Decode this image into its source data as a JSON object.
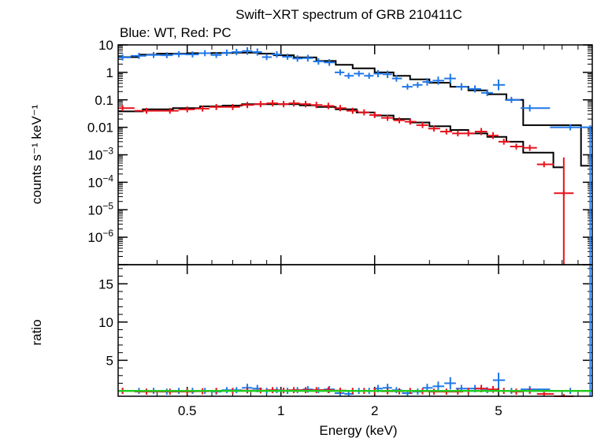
{
  "chart_data": {
    "type": "scatter",
    "title": "Swift−XRT spectrum of GRB 210411C",
    "subtitle": "Blue: WT, Red: PC",
    "xlabel": "Energy (keV)",
    "x_scale": "log",
    "xlim": [
      0.3,
      10
    ],
    "x_ticks": [
      {
        "value": 0.5,
        "label": "0.5"
      },
      {
        "value": 1,
        "label": "1"
      },
      {
        "value": 2,
        "label": "2"
      },
      {
        "value": 5,
        "label": "5"
      }
    ],
    "top_panel": {
      "ylabel": "counts s⁻¹ keV⁻¹",
      "y_scale": "log",
      "ylim": [
        1e-07,
        10
      ],
      "y_ticks": [
        {
          "value": 10,
          "label": "10"
        },
        {
          "value": 1,
          "label": "1"
        },
        {
          "value": 0.1,
          "label": "0.1"
        },
        {
          "value": 0.01,
          "label": "0.01"
        },
        {
          "value": 0.001,
          "base": "10",
          "exp": "−3"
        },
        {
          "value": 0.0001,
          "base": "10",
          "exp": "−4"
        },
        {
          "value": 1e-05,
          "base": "10",
          "exp": "−5"
        },
        {
          "value": 1e-06,
          "base": "10",
          "exp": "−6"
        }
      ]
    },
    "bottom_panel": {
      "ylabel": "ratio",
      "ylim": [
        0.3,
        17.5
      ],
      "y_ticks": [
        {
          "value": 5,
          "label": "5"
        },
        {
          "value": 10,
          "label": "10"
        },
        {
          "value": 15,
          "label": "15"
        }
      ],
      "reference_line": 1.0
    },
    "series": [
      {
        "color": "#1f77e8",
        "points": [
          {
            "x": 0.31,
            "y": 3.5,
            "r": 1.0
          },
          {
            "x": 0.35,
            "y": 4.0,
            "r": 1.0
          },
          {
            "x": 0.39,
            "y": 4.3,
            "r": 1.0
          },
          {
            "x": 0.43,
            "y": 4.2,
            "r": 0.9
          },
          {
            "x": 0.47,
            "y": 4.6,
            "r": 1.0
          },
          {
            "x": 0.52,
            "y": 4.5,
            "r": 1.0
          },
          {
            "x": 0.57,
            "y": 5.0,
            "r": 1.0
          },
          {
            "x": 0.62,
            "y": 4.3,
            "r": 0.9
          },
          {
            "x": 0.67,
            "y": 5.2,
            "r": 1.1
          },
          {
            "x": 0.72,
            "y": 5.5,
            "r": 1.1
          },
          {
            "x": 0.78,
            "y": 6.0,
            "r": 1.4
          },
          {
            "x": 0.84,
            "y": 5.5,
            "r": 1.3
          },
          {
            "x": 0.9,
            "y": 3.6,
            "r": 1.0
          },
          {
            "x": 0.97,
            "y": 4.5,
            "r": 1.1
          },
          {
            "x": 1.05,
            "y": 3.7,
            "r": 1.0
          },
          {
            "x": 1.13,
            "y": 3.2,
            "r": 1.1
          },
          {
            "x": 1.22,
            "y": 3.3,
            "r": 1.2
          },
          {
            "x": 1.32,
            "y": 2.5,
            "r": 1.1
          },
          {
            "x": 1.43,
            "y": 2.3,
            "r": 1.2
          },
          {
            "x": 1.55,
            "y": 1.0,
            "r": 0.7
          },
          {
            "x": 1.65,
            "y": 0.75,
            "r": 0.6
          },
          {
            "x": 1.78,
            "y": 0.9,
            "r": 1.0
          },
          {
            "x": 1.92,
            "y": 0.75,
            "r": 1.0
          },
          {
            "x": 2.05,
            "y": 0.9,
            "r": 1.3
          },
          {
            "x": 2.2,
            "y": 0.85,
            "r": 1.4
          },
          {
            "x": 2.35,
            "y": 0.6,
            "r": 1.1
          },
          {
            "x": 2.55,
            "y": 0.3,
            "r": 0.7
          },
          {
            "x": 2.75,
            "y": 0.35,
            "r": 0.9
          },
          {
            "x": 2.95,
            "y": 0.45,
            "r": 1.4
          },
          {
            "x": 3.2,
            "y": 0.5,
            "r": 1.6
          },
          {
            "x": 3.5,
            "y": 0.6,
            "r": 2.0
          },
          {
            "x": 3.8,
            "y": 0.3,
            "r": 1.3
          },
          {
            "x": 4.2,
            "y": 0.25,
            "r": 1.3
          },
          {
            "x": 4.6,
            "y": 0.18,
            "r": 1.1
          },
          {
            "x": 5.0,
            "y": 0.35,
            "r": 2.4
          },
          {
            "x": 5.5,
            "y": 0.1,
            "r": 1.0
          },
          {
            "x": 6.3,
            "y": 0.05,
            "r": 1.2
          },
          {
            "x": 8.5,
            "y": 0.01,
            "r": 1.0
          }
        ],
        "model": [
          [
            0.3,
            3.6
          ],
          [
            0.35,
            3.6
          ],
          [
            0.35,
            4.4
          ],
          [
            0.4,
            4.4
          ],
          [
            0.4,
            4.8
          ],
          [
            0.5,
            4.8
          ],
          [
            0.5,
            5.0
          ],
          [
            0.6,
            5.0
          ],
          [
            0.6,
            5.1
          ],
          [
            0.7,
            5.1
          ],
          [
            0.7,
            5.2
          ],
          [
            0.85,
            5.2
          ],
          [
            0.85,
            4.8
          ],
          [
            0.95,
            4.8
          ],
          [
            0.95,
            4.2
          ],
          [
            1.1,
            4.2
          ],
          [
            1.1,
            3.5
          ],
          [
            1.3,
            3.5
          ],
          [
            1.3,
            2.6
          ],
          [
            1.5,
            2.6
          ],
          [
            1.5,
            1.9
          ],
          [
            1.7,
            1.9
          ],
          [
            1.7,
            1.4
          ],
          [
            2.0,
            1.4
          ],
          [
            2.0,
            1.0
          ],
          [
            2.3,
            1.0
          ],
          [
            2.3,
            0.75
          ],
          [
            2.6,
            0.75
          ],
          [
            2.6,
            0.56
          ],
          [
            3.0,
            0.56
          ],
          [
            3.0,
            0.42
          ],
          [
            3.5,
            0.42
          ],
          [
            3.5,
            0.3
          ],
          [
            4.0,
            0.3
          ],
          [
            4.0,
            0.22
          ],
          [
            4.6,
            0.22
          ],
          [
            4.6,
            0.16
          ],
          [
            5.3,
            0.16
          ],
          [
            5.3,
            0.1
          ],
          [
            6.0,
            0.1
          ],
          [
            6.0,
            0.012
          ],
          [
            9.2,
            0.012
          ],
          [
            9.2,
            0.0004
          ],
          [
            10,
            0.0004
          ]
        ]
      },
      {
        "color": "#e8111a",
        "points": [
          {
            "x": 0.31,
            "y": 0.05,
            "r": 1.0
          },
          {
            "x": 0.37,
            "y": 0.04,
            "r": 0.9
          },
          {
            "x": 0.44,
            "y": 0.04,
            "r": 0.9
          },
          {
            "x": 0.5,
            "y": 0.045,
            "r": 0.9
          },
          {
            "x": 0.56,
            "y": 0.048,
            "r": 0.95
          },
          {
            "x": 0.62,
            "y": 0.055,
            "r": 1.0
          },
          {
            "x": 0.7,
            "y": 0.055,
            "r": 1.0
          },
          {
            "x": 0.78,
            "y": 0.065,
            "r": 1.05
          },
          {
            "x": 0.86,
            "y": 0.07,
            "r": 1.05
          },
          {
            "x": 0.94,
            "y": 0.075,
            "r": 1.1
          },
          {
            "x": 1.02,
            "y": 0.07,
            "r": 1.05
          },
          {
            "x": 1.1,
            "y": 0.075,
            "r": 1.1
          },
          {
            "x": 1.2,
            "y": 0.07,
            "r": 1.1
          },
          {
            "x": 1.3,
            "y": 0.065,
            "r": 1.1
          },
          {
            "x": 1.42,
            "y": 0.06,
            "r": 1.1
          },
          {
            "x": 1.55,
            "y": 0.05,
            "r": 1.05
          },
          {
            "x": 1.7,
            "y": 0.04,
            "r": 1.0
          },
          {
            "x": 1.85,
            "y": 0.035,
            "r": 1.0
          },
          {
            "x": 2.0,
            "y": 0.028,
            "r": 1.0
          },
          {
            "x": 2.2,
            "y": 0.022,
            "r": 0.95
          },
          {
            "x": 2.4,
            "y": 0.018,
            "r": 0.95
          },
          {
            "x": 2.6,
            "y": 0.016,
            "r": 1.0
          },
          {
            "x": 2.85,
            "y": 0.012,
            "r": 0.95
          },
          {
            "x": 3.1,
            "y": 0.009,
            "r": 0.9
          },
          {
            "x": 3.4,
            "y": 0.007,
            "r": 0.9
          },
          {
            "x": 3.7,
            "y": 0.006,
            "r": 0.9
          },
          {
            "x": 4.0,
            "y": 0.006,
            "r": 1.0
          },
          {
            "x": 4.4,
            "y": 0.007,
            "r": 1.3
          },
          {
            "x": 4.8,
            "y": 0.005,
            "r": 1.2
          },
          {
            "x": 5.2,
            "y": 0.003,
            "r": 1.0
          },
          {
            "x": 5.7,
            "y": 0.002,
            "r": 0.9
          },
          {
            "x": 6.3,
            "y": 0.0018,
            "r": 1.0
          },
          {
            "x": 7.0,
            "y": 0.00045,
            "r": 0.6
          },
          {
            "x": 8.1,
            "y": 4e-05,
            "r": 0.2
          }
        ],
        "model": [
          [
            0.3,
            0.038
          ],
          [
            0.36,
            0.038
          ],
          [
            0.36,
            0.045
          ],
          [
            0.45,
            0.045
          ],
          [
            0.45,
            0.05
          ],
          [
            0.55,
            0.05
          ],
          [
            0.55,
            0.058
          ],
          [
            0.65,
            0.058
          ],
          [
            0.65,
            0.062
          ],
          [
            0.75,
            0.062
          ],
          [
            0.75,
            0.07
          ],
          [
            0.95,
            0.07
          ],
          [
            0.95,
            0.07
          ],
          [
            1.15,
            0.07
          ],
          [
            1.15,
            0.063
          ],
          [
            1.3,
            0.063
          ],
          [
            1.3,
            0.055
          ],
          [
            1.5,
            0.055
          ],
          [
            1.5,
            0.045
          ],
          [
            1.75,
            0.045
          ],
          [
            1.75,
            0.035
          ],
          [
            2.0,
            0.035
          ],
          [
            2.0,
            0.027
          ],
          [
            2.3,
            0.027
          ],
          [
            2.3,
            0.02
          ],
          [
            2.6,
            0.02
          ],
          [
            2.6,
            0.015
          ],
          [
            3.0,
            0.015
          ],
          [
            3.0,
            0.011
          ],
          [
            3.5,
            0.011
          ],
          [
            3.5,
            0.008
          ],
          [
            4.0,
            0.008
          ],
          [
            4.0,
            0.006
          ],
          [
            4.6,
            0.006
          ],
          [
            4.6,
            0.0045
          ],
          [
            5.3,
            0.0045
          ],
          [
            5.3,
            0.003
          ],
          [
            6.0,
            0.003
          ],
          [
            6.0,
            0.0012
          ],
          [
            7.5,
            0.0012
          ],
          [
            7.5,
            0.00035
          ],
          [
            8.1,
            0.00035
          ]
        ]
      }
    ],
    "ratio_line_color": "#22cc22"
  }
}
